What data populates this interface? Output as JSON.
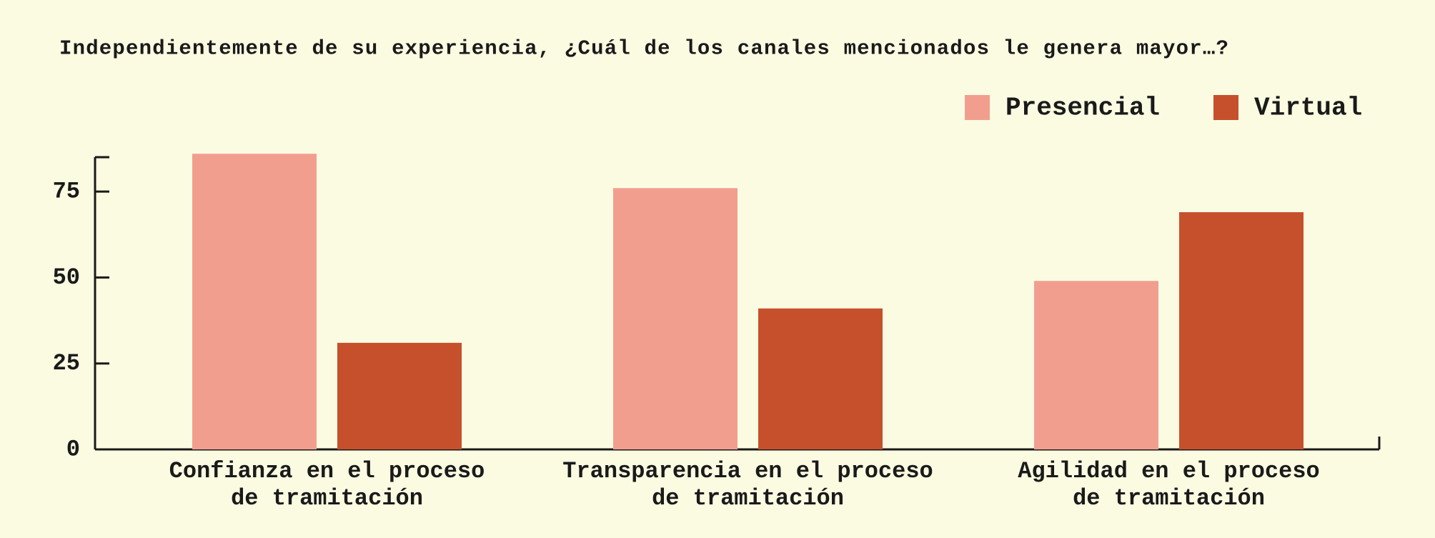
{
  "chart_data": {
    "type": "bar",
    "title": "Independientemente de su experiencia, ¿Cuál de los canales mencionados le genera mayor…?",
    "categories": [
      "Confianza en el proceso\nde tramitación",
      "Transparencia en el proceso\nde tramitación",
      "Agilidad en el proceso\nde tramitación"
    ],
    "series": [
      {
        "name": "Presencial",
        "color": "#f29e8e",
        "values": [
          86,
          76,
          49
        ]
      },
      {
        "name": "Virtual",
        "color": "#c5502b",
        "values": [
          31,
          41,
          69
        ]
      }
    ],
    "ylim": [
      0,
      85
    ],
    "yticks": [
      0,
      25,
      50,
      75
    ],
    "legend": "top-right"
  }
}
